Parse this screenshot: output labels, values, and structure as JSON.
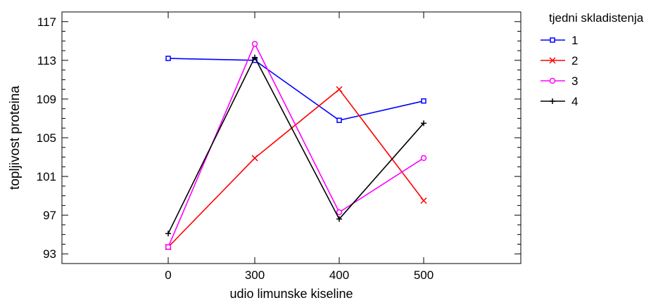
{
  "chart_data": {
    "type": "line",
    "title": "",
    "xlabel": "udio limunske kiseline",
    "ylabel": "topljivost proteina",
    "categories": [
      "0",
      "300",
      "400",
      "500"
    ],
    "ylim": [
      92,
      118
    ],
    "yticks": [
      93,
      97,
      101,
      105,
      109,
      113,
      117
    ],
    "grid": false,
    "legend": {
      "title": "tjedni skladistenja",
      "placement": "right"
    },
    "series": [
      {
        "name": "1",
        "color": "#0000ff",
        "marker": "square",
        "values": [
          113.2,
          113.0,
          106.8,
          108.8
        ]
      },
      {
        "name": "2",
        "color": "#ff0000",
        "marker": "x",
        "values": [
          93.7,
          102.9,
          110.0,
          98.5
        ]
      },
      {
        "name": "3",
        "color": "#ff00ff",
        "marker": "circle",
        "values": [
          93.7,
          114.7,
          97.3,
          102.9
        ]
      },
      {
        "name": "4",
        "color": "#000000",
        "marker": "plus",
        "values": [
          95.1,
          113.3,
          96.6,
          106.5
        ]
      }
    ]
  }
}
